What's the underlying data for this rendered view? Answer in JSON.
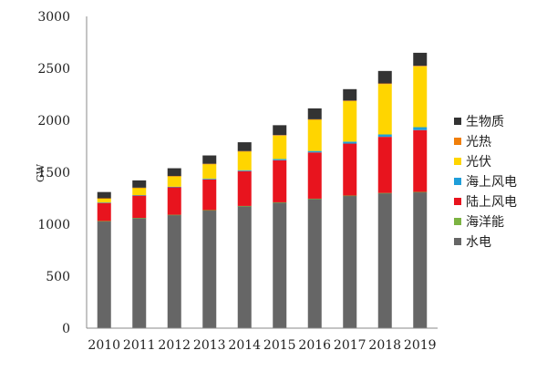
{
  "chart_data": {
    "type": "bar",
    "stacked": true,
    "title": "",
    "xlabel": "",
    "ylabel": "GW",
    "ylim": [
      0,
      3000
    ],
    "yticks": [
      0,
      500,
      1000,
      1500,
      2000,
      2500,
      3000
    ],
    "grid": false,
    "legend_position": "right",
    "categories": [
      "2010",
      "2011",
      "2012",
      "2013",
      "2014",
      "2015",
      "2016",
      "2017",
      "2018",
      "2019"
    ],
    "series": [
      {
        "name": "水电",
        "color": "#666666",
        "values": [
          1030,
          1060,
          1090,
          1135,
          1175,
          1210,
          1245,
          1275,
          1300,
          1310
        ]
      },
      {
        "name": "海洋能",
        "color": "#7cb342",
        "values": [
          1,
          1,
          1,
          1,
          1,
          1,
          1,
          1,
          1,
          1
        ]
      },
      {
        "name": "陆上风电",
        "color": "#e8141e",
        "values": [
          175,
          215,
          265,
          295,
          335,
          405,
          445,
          500,
          540,
          595
        ]
      },
      {
        "name": "海上风电",
        "color": "#1f9ed9",
        "values": [
          3,
          4,
          5,
          7,
          9,
          12,
          14,
          19,
          23,
          28
        ]
      },
      {
        "name": "光伏",
        "color": "#ffd500",
        "values": [
          40,
          70,
          100,
          140,
          180,
          225,
          300,
          390,
          485,
          585
        ]
      },
      {
        "name": "光热",
        "color": "#f07f0a",
        "values": [
          1,
          2,
          3,
          4,
          4,
          5,
          5,
          5,
          6,
          6
        ]
      },
      {
        "name": "生物质",
        "color": "#333333",
        "values": [
          60,
          70,
          75,
          80,
          85,
          95,
          105,
          110,
          120,
          125
        ]
      }
    ],
    "legend_order": [
      "生物质",
      "光热",
      "光伏",
      "海上风电",
      "陆上风电",
      "海洋能",
      "水电"
    ]
  }
}
